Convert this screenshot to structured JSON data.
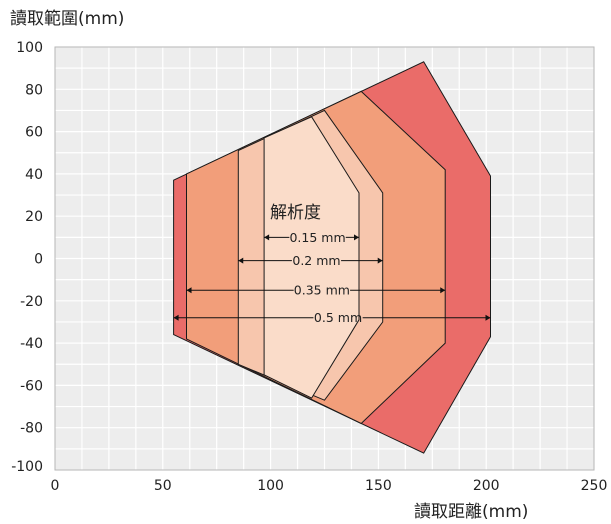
{
  "chart_data": {
    "type": "area",
    "title": "",
    "xlabel": "讀取距離(mm)",
    "ylabel": "讀取範圍(mm)",
    "xlim": [
      0,
      250
    ],
    "ylim": [
      -100,
      100
    ],
    "x_ticks": [
      0,
      50,
      100,
      150,
      200,
      250
    ],
    "y_ticks": [
      100,
      80,
      60,
      40,
      20,
      0,
      -20,
      -40,
      -60,
      -80,
      -100
    ],
    "grid": true,
    "annotation_title": "解析度",
    "series": [
      {
        "name": "0.5 mm",
        "color": "#ea6c69",
        "polygon": [
          [
            55,
            37
          ],
          [
            55,
            -36
          ],
          [
            171,
            -92
          ],
          [
            202,
            -37
          ],
          [
            202,
            39
          ],
          [
            171,
            93
          ]
        ],
        "range": [
          55,
          202
        ],
        "y_label": -28
      },
      {
        "name": "0.35 mm",
        "color": "#f29e7a",
        "polygon": [
          [
            61,
            40
          ],
          [
            61,
            -38
          ],
          [
            142,
            -78
          ],
          [
            181,
            -40
          ],
          [
            181,
            42
          ],
          [
            142,
            79
          ]
        ],
        "range": [
          61,
          181
        ],
        "y_label": -15
      },
      {
        "name": "0.2 mm",
        "color": "#f7c6ad",
        "polygon": [
          [
            85,
            51
          ],
          [
            85,
            -50
          ],
          [
            125,
            -67
          ],
          [
            152,
            -30
          ],
          [
            152,
            31
          ],
          [
            125,
            70
          ]
        ],
        "range": [
          85,
          152
        ],
        "y_label": -1
      },
      {
        "name": "0.15 mm",
        "color": "#fadcc9",
        "polygon": [
          [
            97,
            57
          ],
          [
            97,
            -55
          ],
          [
            119,
            -66
          ],
          [
            141,
            -29
          ],
          [
            141,
            31
          ],
          [
            119,
            67
          ]
        ],
        "range": [
          97,
          141
        ],
        "y_label": 10
      }
    ]
  }
}
